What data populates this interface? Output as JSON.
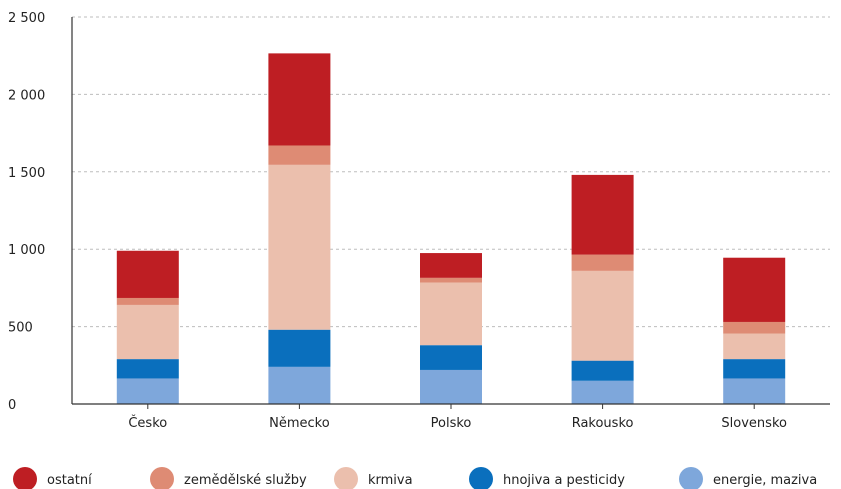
{
  "chart_data": {
    "type": "bar",
    "stacked": true,
    "categories": [
      "Česko",
      "Německo",
      "Polsko",
      "Rakousko",
      "Slovensko"
    ],
    "series": [
      {
        "name": "energie, maziva",
        "color": "#7ea7db",
        "values": [
          165,
          240,
          220,
          150,
          165
        ]
      },
      {
        "name": "hnojiva a pesticidy",
        "color": "#0a6fbd",
        "values": [
          125,
          240,
          160,
          130,
          125
        ]
      },
      {
        "name": "krmiva",
        "color": "#ebbfad",
        "values": [
          350,
          1065,
          405,
          580,
          165
        ]
      },
      {
        "name": "zemědělské služby",
        "color": "#de8b74",
        "values": [
          45,
          125,
          30,
          105,
          75
        ]
      },
      {
        "name": "ostatní",
        "color": "#be1e23",
        "values": [
          305,
          595,
          160,
          515,
          415
        ]
      }
    ],
    "yticks": [
      "0",
      "500",
      "1 000",
      "1 500",
      "2 000",
      "2 500"
    ],
    "ylim": [
      0,
      2500
    ],
    "grid": true,
    "legend_position": "bottom",
    "legend_order": [
      "ostatní",
      "zemědělské služby",
      "krmiva",
      "hnojiva a pesticidy",
      "energie, maziva"
    ]
  }
}
